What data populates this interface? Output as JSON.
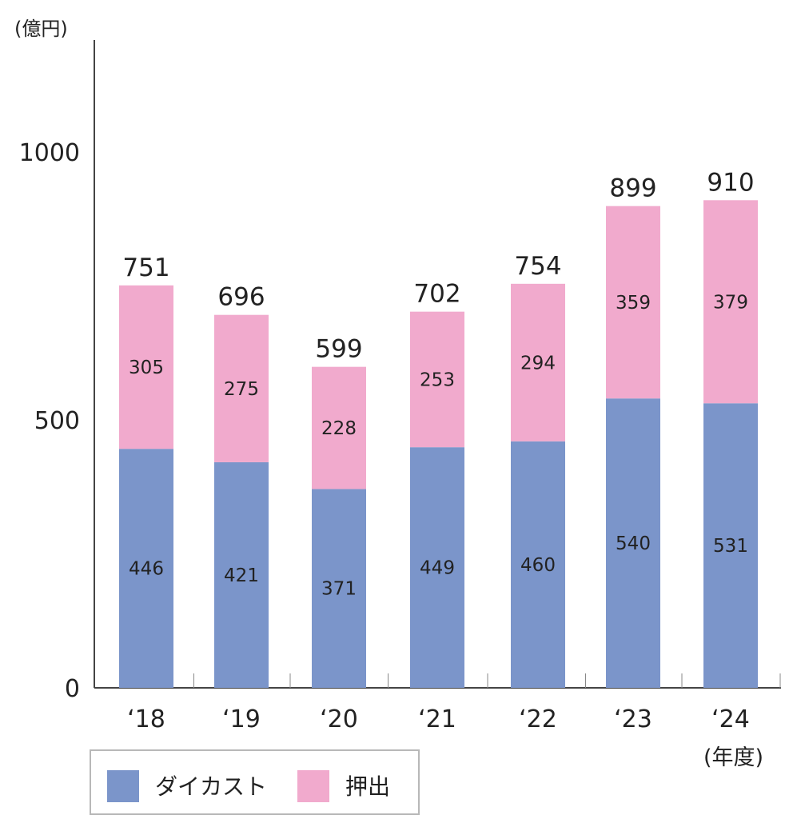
{
  "chart_data": {
    "type": "bar",
    "stacked": true,
    "ylabel": "(億円)",
    "xlabel": "(年度)",
    "ylim": [
      0,
      1180
    ],
    "yticks": [
      0,
      500,
      1000
    ],
    "categories": [
      "‘18",
      "‘19",
      "‘20",
      "‘21",
      "‘22",
      "‘23",
      "‘24"
    ],
    "series": [
      {
        "name": "ダイカスト",
        "color": "#7b95ca",
        "values": [
          446,
          421,
          371,
          449,
          460,
          540,
          531
        ]
      },
      {
        "name": "押出",
        "color": "#f1aacd",
        "values": [
          305,
          275,
          228,
          253,
          294,
          359,
          379
        ]
      }
    ],
    "totals": [
      751,
      696,
      599,
      702,
      754,
      899,
      910
    ],
    "legend_position": "bottom-left",
    "grid": false
  }
}
